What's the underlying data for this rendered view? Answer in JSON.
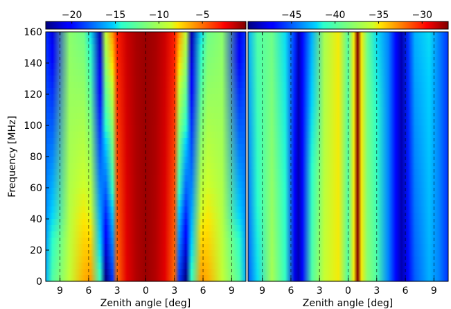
{
  "chart_data": [
    {
      "type": "heatmap",
      "title": "",
      "xlabel": "Zenith angle [deg]",
      "ylabel": "Frequency [MHz]",
      "xlim": [
        -10.5,
        10.5
      ],
      "ylim": [
        0,
        160
      ],
      "x_tick_values": [
        -9,
        -6,
        -3,
        0,
        3,
        6,
        9
      ],
      "x_tick_labels": [
        "9",
        "6",
        "3",
        "0",
        "3",
        "6",
        "9"
      ],
      "y_tick_values": [
        0,
        20,
        40,
        60,
        80,
        100,
        120,
        140,
        160
      ],
      "y_tick_labels": [
        "0",
        "20",
        "40",
        "60",
        "80",
        "100",
        "120",
        "140",
        "160"
      ],
      "dashed_lines_x": [
        -9,
        -6,
        -3,
        0,
        3,
        6,
        9
      ],
      "colorbar": {
        "range": [
          -23,
          0
        ],
        "tick_values": [
          -20,
          -15,
          -10,
          -5
        ],
        "tick_labels": [
          "−20",
          "−15",
          "−10",
          "−5"
        ]
      },
      "field": {
        "samples_x": [
          -10.5,
          -9.8,
          -8,
          -6.5,
          -5.8,
          -4.8,
          -4.2,
          -3.5,
          -3,
          -2,
          -1,
          0,
          1,
          2,
          3,
          3.5,
          4.2,
          4.8,
          5.8,
          6.5,
          8,
          9.8,
          10.5
        ],
        "rows": [
          {
            "freq": 160,
            "values": [
              -19,
              -21,
              -11,
              -12,
              -15,
              -22,
              -9,
              -6,
              -3,
              -1.5,
              -0.8,
              -0.5,
              -0.8,
              -1.5,
              -3,
              -6,
              -9,
              -22,
              -15,
              -12,
              -11,
              -21,
              -19
            ]
          },
          {
            "freq": 0,
            "values": [
              -16,
              -13,
              -9,
              -6.5,
              -6,
              -14,
              -23,
              -19,
              -5,
              -2,
              -1,
              -0.5,
              -1,
              -2,
              -5,
              -19,
              -23,
              -14,
              -6,
              -6.5,
              -9,
              -13,
              -16
            ]
          }
        ]
      }
    },
    {
      "type": "heatmap",
      "title": "",
      "xlabel": "Zenith angle [deg]",
      "ylabel": "",
      "xlim": [
        -10.5,
        10.5
      ],
      "ylim": [
        0,
        160
      ],
      "x_tick_values": [
        -9,
        -6,
        -3,
        0,
        3,
        6,
        9
      ],
      "x_tick_labels": [
        "9",
        "6",
        "3",
        "0",
        "3",
        "6",
        "9"
      ],
      "dashed_lines_x": [
        -9,
        -6,
        -3,
        0,
        3,
        6,
        9
      ],
      "colorbar": {
        "range": [
          -50,
          -27
        ],
        "tick_values": [
          -45,
          -40,
          -35,
          -30
        ],
        "tick_labels": [
          "−45",
          "−40",
          "−35",
          "−30"
        ]
      },
      "field": {
        "samples_x": [
          -10.5,
          -9.5,
          -8,
          -6.6,
          -5.6,
          -5.2,
          -4.8,
          -3.8,
          -2.5,
          -1,
          0,
          0.6,
          1,
          1.4,
          2,
          3,
          4.2,
          5,
          5.6,
          6.3,
          7,
          8.5,
          9.5,
          10.5
        ],
        "rows": [
          {
            "freq": 160,
            "values": [
              -43,
              -40,
              -39,
              -42,
              -46,
              -49,
              -47,
              -43,
              -37,
              -35,
              -40,
              -35,
              -27,
              -35,
              -39,
              -42,
              -44,
              -47,
              -49,
              -46,
              -43,
              -42,
              -44,
              -46
            ]
          },
          {
            "freq": 0,
            "values": [
              -45,
              -42,
              -37,
              -41,
              -48,
              -49,
              -47,
              -40,
              -36,
              -35,
              -40,
              -35,
              -27,
              -35,
              -38,
              -40,
              -44,
              -47,
              -49,
              -47,
              -45,
              -43,
              -44,
              -46
            ]
          }
        ]
      }
    }
  ]
}
